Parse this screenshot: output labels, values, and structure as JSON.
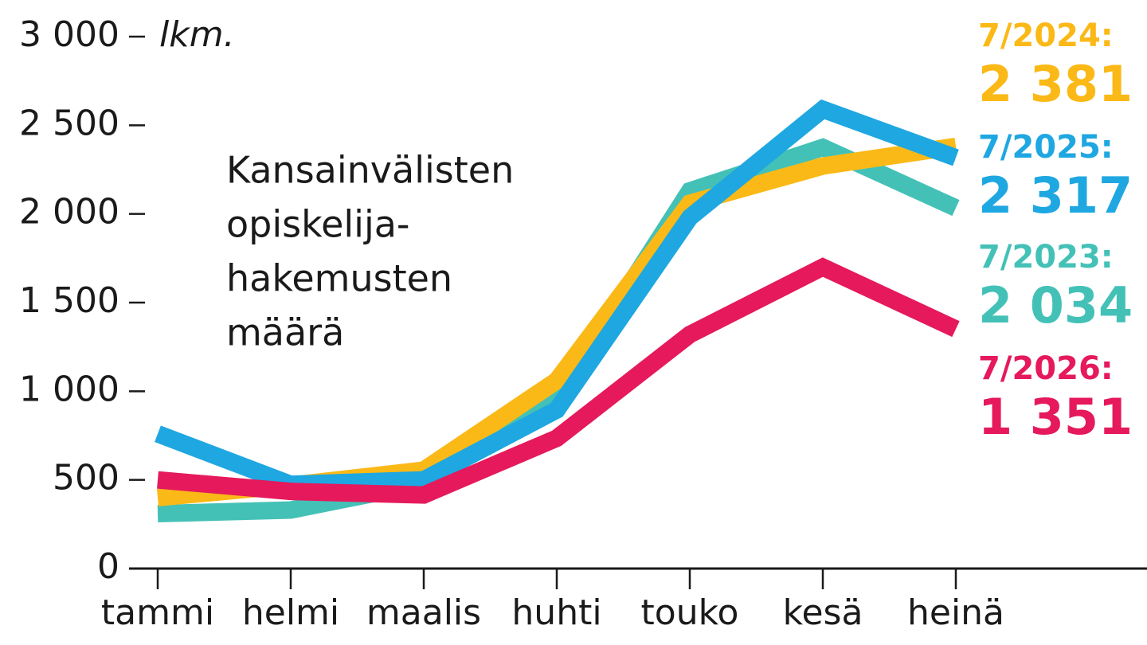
{
  "chart_data": {
    "type": "line",
    "title_lines": [
      "Kansainvälisten",
      "opiskelija-",
      "hakemusten",
      "määrä"
    ],
    "unit": "lkm.",
    "categories": [
      "tammi",
      "helmi",
      "maalis",
      "huhti",
      "touko",
      "kesä",
      "heinä"
    ],
    "ylim": [
      0,
      3000
    ],
    "yticks": [
      0,
      500,
      {
        "value": 1000,
        "label": "1 000"
      },
      {
        "value": 1500,
        "label": "1 500"
      },
      {
        "value": 2000,
        "label": "2 000"
      },
      {
        "value": 2500,
        "label": "2 500"
      },
      {
        "value": 3000,
        "label": "3 000"
      }
    ],
    "series": [
      {
        "name": "7/2024:",
        "color": "#fbb917",
        "values": [
          400,
          470,
          555,
          1060,
          2060,
          2270,
          2381
        ],
        "value_labels": [
          null,
          null,
          null,
          null,
          null,
          null,
          "2 381"
        ]
      },
      {
        "name": "7/2025:",
        "color": "#1ea7e1",
        "values": [
          760,
          475,
          500,
          895,
          1980,
          2590,
          2317
        ],
        "value_labels": [
          null,
          null,
          null,
          null,
          null,
          null,
          "2 317"
        ]
      },
      {
        "name": "7/2023:",
        "color": "#44c1b7",
        "values": [
          310,
          330,
          480,
          960,
          2130,
          2375,
          2034
        ],
        "value_labels": [
          null,
          null,
          null,
          null,
          null,
          null,
          "2 034"
        ]
      },
      {
        "name": "7/2026:",
        "color": "#e5195b",
        "values": [
          500,
          435,
          415,
          735,
          1320,
          1700,
          1351
        ],
        "value_labels": [
          null,
          null,
          null,
          null,
          null,
          null,
          "1 351"
        ]
      }
    ]
  }
}
